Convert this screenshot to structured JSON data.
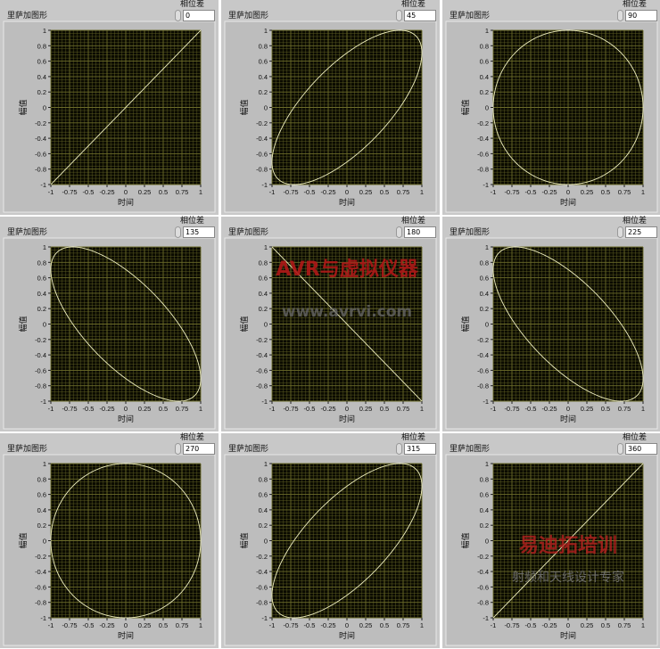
{
  "panel_title": "里萨加图形",
  "phase_label": "相位差",
  "xlabel": "时间",
  "ylabel": "幅值",
  "watermarks": {
    "top": "AVR与虚拟仪器",
    "url": "www.avrvi.com",
    "logo": "易迪拓培训",
    "slogan": "射频和天线设计专家"
  },
  "colors": {
    "plot_bg": "#0a0a00",
    "grid": "#6b6b2a",
    "curve": "#f0f0c0",
    "panel": "#c8c8c8"
  },
  "chart_data": [
    {
      "type": "line",
      "phase": "0",
      "xlim": [
        -1,
        1
      ],
      "ylim": [
        -1,
        1
      ],
      "grid": true
    },
    {
      "type": "line",
      "phase": "45",
      "xlim": [
        -1,
        1
      ],
      "ylim": [
        -1,
        1
      ],
      "grid": true
    },
    {
      "type": "line",
      "phase": "90",
      "xlim": [
        -1,
        1
      ],
      "ylim": [
        -1,
        1
      ],
      "grid": true
    },
    {
      "type": "line",
      "phase": "135",
      "xlim": [
        -1,
        1
      ],
      "ylim": [
        -1,
        1
      ],
      "grid": true
    },
    {
      "type": "line",
      "phase": "180",
      "xlim": [
        -1,
        1
      ],
      "ylim": [
        -1,
        1
      ],
      "grid": true
    },
    {
      "type": "line",
      "phase": "225",
      "xlim": [
        -1,
        1
      ],
      "ylim": [
        -1,
        1
      ],
      "grid": true
    },
    {
      "type": "line",
      "phase": "270",
      "xlim": [
        -1,
        1
      ],
      "ylim": [
        -1,
        1
      ],
      "grid": true
    },
    {
      "type": "line",
      "phase": "315",
      "xlim": [
        -1,
        1
      ],
      "ylim": [
        -1,
        1
      ],
      "grid": true
    },
    {
      "type": "line",
      "phase": "360",
      "xlim": [
        -1,
        1
      ],
      "ylim": [
        -1,
        1
      ],
      "grid": true
    }
  ],
  "xticks": [
    "-1",
    "-0.75",
    "-0.5",
    "-0.25",
    "0",
    "0.25",
    "0.5",
    "0.75",
    "1"
  ],
  "yticks": [
    "1",
    "0.8",
    "0.6",
    "0.4",
    "0.2",
    "0",
    "-0.2",
    "-0.4",
    "-0.6",
    "-0.8",
    "-1"
  ]
}
